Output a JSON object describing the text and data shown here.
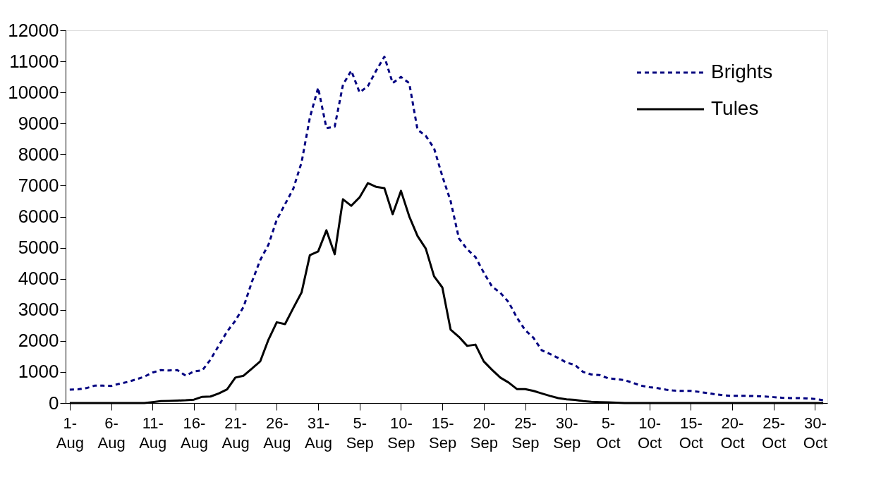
{
  "chart_data": {
    "type": "line",
    "categories": [
      "1-Aug",
      null,
      null,
      null,
      null,
      "6-Aug",
      null,
      null,
      null,
      null,
      "11-Aug",
      null,
      null,
      null,
      null,
      "16-Aug",
      null,
      null,
      null,
      null,
      "21-Aug",
      null,
      null,
      null,
      null,
      "26-Aug",
      null,
      null,
      null,
      null,
      "31-Aug",
      null,
      null,
      null,
      null,
      "5-Sep",
      null,
      null,
      null,
      null,
      "10-Sep",
      null,
      null,
      null,
      null,
      "15-Sep",
      null,
      null,
      null,
      null,
      "20-Sep",
      null,
      null,
      null,
      null,
      "25-Sep",
      null,
      null,
      null,
      null,
      "30-Sep",
      null,
      null,
      null,
      null,
      "5-Oct",
      null,
      null,
      null,
      null,
      "10-Oct",
      null,
      null,
      null,
      null,
      "15-Oct",
      null,
      null,
      null,
      null,
      "20-Oct",
      null,
      null,
      null,
      null,
      "25-Oct",
      null,
      null,
      null,
      null,
      "30-Oct",
      null
    ],
    "series": [
      {
        "name": "Brights",
        "color": "#000080",
        "line_style": "dashed",
        "values": [
          430,
          440,
          480,
          560,
          560,
          550,
          620,
          680,
          760,
          850,
          980,
          1060,
          1050,
          1060,
          880,
          1020,
          1050,
          1400,
          1850,
          2300,
          2650,
          3100,
          3900,
          4600,
          5100,
          5900,
          6400,
          6900,
          7750,
          9190,
          10150,
          8850,
          8900,
          10250,
          10700,
          10000,
          10200,
          10700,
          11150,
          10300,
          10500,
          10300,
          8800,
          8600,
          8200,
          7300,
          6500,
          5300,
          4950,
          4700,
          4200,
          3750,
          3550,
          3250,
          2750,
          2350,
          2100,
          1700,
          1580,
          1450,
          1300,
          1230,
          1000,
          920,
          900,
          800,
          770,
          740,
          650,
          560,
          510,
          480,
          430,
          400,
          390,
          390,
          360,
          320,
          280,
          250,
          230,
          230,
          230,
          220,
          210,
          190,
          170,
          160,
          160,
          150,
          130,
          90
        ]
      },
      {
        "name": "Tules",
        "color": "#000000",
        "line_style": "solid",
        "values": [
          0,
          0,
          0,
          0,
          0,
          0,
          0,
          0,
          0,
          0,
          30,
          60,
          70,
          80,
          90,
          110,
          200,
          210,
          310,
          440,
          820,
          880,
          1110,
          1340,
          2040,
          2600,
          2540,
          3060,
          3560,
          4760,
          4880,
          5560,
          4790,
          6560,
          6350,
          6620,
          7080,
          6960,
          6920,
          6080,
          6830,
          6010,
          5380,
          4970,
          4080,
          3720,
          2360,
          2130,
          1840,
          1880,
          1340,
          1070,
          820,
          660,
          450,
          450,
          390,
          310,
          230,
          160,
          120,
          100,
          60,
          40,
          30,
          20,
          10,
          0,
          0,
          0,
          0,
          0,
          0,
          0,
          0,
          0,
          0,
          0,
          0,
          0,
          0,
          0,
          0,
          0,
          0,
          0,
          0,
          0,
          0,
          0,
          0,
          0
        ]
      }
    ],
    "ylim": [
      0,
      12000
    ],
    "yticks": [
      0,
      1000,
      2000,
      3000,
      4000,
      5000,
      6000,
      7000,
      8000,
      9000,
      10000,
      11000,
      12000
    ],
    "grid": false,
    "legend": "top right",
    "marker": "none"
  }
}
